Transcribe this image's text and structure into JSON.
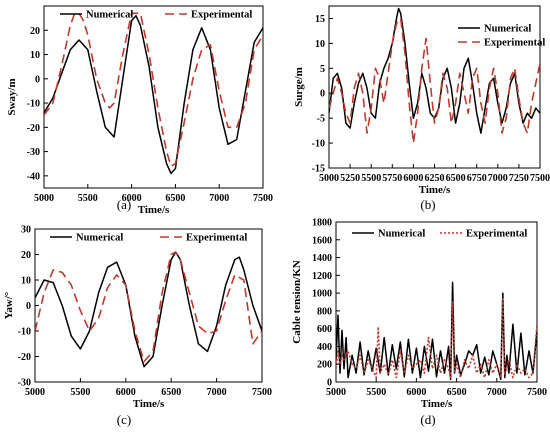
{
  "chart_data": [
    {
      "type": "line",
      "caption": "(a)",
      "xlabel": "Time/s",
      "ylabel": "Sway/m",
      "xlim": [
        5000,
        7500
      ],
      "ylim": [
        -45,
        30
      ],
      "xticks": [
        5000,
        5500,
        6000,
        6500,
        7000,
        7500
      ],
      "yticks": [
        -40,
        -30,
        -20,
        -10,
        0,
        10,
        20
      ],
      "legend": "top",
      "series": [
        {
          "name": "Numerical",
          "color": "#000000",
          "dash": "solid",
          "x": [
            5000,
            5100,
            5200,
            5300,
            5400,
            5500,
            5600,
            5700,
            5800,
            5900,
            6000,
            6050,
            6100,
            6200,
            6300,
            6400,
            6450,
            6500,
            6600,
            6700,
            6800,
            6900,
            7000,
            7100,
            7200,
            7300,
            7400,
            7500
          ],
          "y": [
            -14,
            -8,
            2,
            12,
            16,
            12,
            -5,
            -20,
            -24,
            0,
            24,
            26,
            22,
            5,
            -20,
            -35,
            -39,
            -37,
            -10,
            12,
            21,
            12,
            -12,
            -27,
            -25,
            -5,
            15,
            21
          ]
        },
        {
          "name": "Experimental",
          "color": "#c0392b",
          "dash": "dashed",
          "x": [
            5000,
            5100,
            5200,
            5300,
            5350,
            5400,
            5450,
            5500,
            5600,
            5700,
            5750,
            5800,
            5900,
            6000,
            6100,
            6200,
            6300,
            6400,
            6450,
            6500,
            6600,
            6700,
            6800,
            6900,
            7000,
            7100,
            7200,
            7300,
            7400,
            7500
          ],
          "y": [
            -15,
            -10,
            5,
            22,
            27,
            27,
            24,
            18,
            0,
            -10,
            -12,
            -10,
            10,
            27,
            27,
            10,
            -12,
            -30,
            -36,
            -35,
            -18,
            0,
            12,
            14,
            -5,
            -20,
            -20,
            -10,
            12,
            18
          ]
        }
      ]
    },
    {
      "type": "line",
      "caption": "(b)",
      "xlabel": "Time/s",
      "ylabel": "Surge/m",
      "xlim": [
        5000,
        7500
      ],
      "ylim": [
        -15,
        17.5
      ],
      "xticks": [
        5000,
        5250,
        5500,
        5750,
        6000,
        6250,
        6500,
        6750,
        7000,
        7250,
        7500
      ],
      "yticks": [
        -15,
        -10,
        -5,
        0,
        5,
        10,
        15
      ],
      "legend": "top-right",
      "series": [
        {
          "name": "Numerical",
          "color": "#000000",
          "dash": "solid",
          "x": [
            5000,
            5050,
            5100,
            5150,
            5200,
            5250,
            5300,
            5350,
            5400,
            5450,
            5500,
            5550,
            5600,
            5650,
            5700,
            5750,
            5800,
            5825,
            5850,
            5900,
            5950,
            6000,
            6050,
            6100,
            6150,
            6200,
            6250,
            6300,
            6350,
            6400,
            6450,
            6500,
            6550,
            6600,
            6650,
            6700,
            6750,
            6800,
            6850,
            6900,
            6950,
            7000,
            7050,
            7100,
            7150,
            7200,
            7250,
            7300,
            7350,
            7400,
            7450,
            7500
          ],
          "y": [
            -4,
            3,
            4,
            1,
            -6,
            -7,
            -2,
            2,
            4,
            1,
            -4,
            -5,
            2,
            5,
            7,
            10,
            15,
            17,
            16,
            10,
            2,
            -5,
            -2,
            4,
            1,
            -4,
            -5,
            -3,
            3,
            5,
            1,
            -6,
            -2,
            5,
            7,
            2,
            -4,
            -8,
            -3,
            2,
            3,
            -2,
            -6,
            -3,
            2,
            4,
            -2,
            -6,
            -4,
            -5,
            -3,
            -4
          ]
        },
        {
          "name": "Experimental",
          "color": "#c0392b",
          "dash": "dashed",
          "x": [
            5000,
            5050,
            5100,
            5150,
            5200,
            5250,
            5300,
            5350,
            5400,
            5450,
            5500,
            5550,
            5600,
            5650,
            5700,
            5750,
            5800,
            5850,
            5900,
            5950,
            6000,
            6050,
            6100,
            6150,
            6200,
            6250,
            6300,
            6350,
            6400,
            6450,
            6500,
            6550,
            6600,
            6650,
            6700,
            6750,
            6800,
            6850,
            6900,
            6950,
            7000,
            7050,
            7100,
            7150,
            7200,
            7250,
            7300,
            7350,
            7400,
            7450,
            7500
          ],
          "y": [
            -3,
            0,
            3,
            0,
            -4,
            -6,
            1,
            4,
            0,
            -8,
            -3,
            5,
            3,
            -2,
            4,
            10,
            14,
            15,
            8,
            -2,
            -10,
            -4,
            5,
            11,
            2,
            -6,
            -3,
            4,
            1,
            -6,
            -2,
            4,
            0,
            -4,
            3,
            5,
            -2,
            -6,
            1,
            5,
            0,
            -8,
            -5,
            3,
            5,
            -1,
            -6,
            -8,
            -2,
            2,
            6
          ]
        }
      ]
    },
    {
      "type": "line",
      "caption": "(c)",
      "xlabel": "Time/s",
      "ylabel": "Yaw/°",
      "xlim": [
        5000,
        7500
      ],
      "ylim": [
        -30,
        30
      ],
      "xticks": [
        5000,
        5500,
        6000,
        6500,
        7000,
        7500
      ],
      "yticks": [
        -30,
        -20,
        -10,
        0,
        10,
        20,
        30
      ],
      "legend": "top",
      "series": [
        {
          "name": "Numerical",
          "color": "#000000",
          "dash": "solid",
          "x": [
            5000,
            5100,
            5200,
            5300,
            5400,
            5500,
            5600,
            5700,
            5800,
            5900,
            6000,
            6100,
            6200,
            6300,
            6400,
            6500,
            6550,
            6600,
            6700,
            6800,
            6900,
            7000,
            7100,
            7200,
            7250,
            7300,
            7400,
            7500
          ],
          "y": [
            3,
            10,
            9,
            0,
            -12,
            -17,
            -10,
            5,
            15,
            17,
            8,
            -12,
            -24,
            -20,
            0,
            18,
            21,
            18,
            0,
            -15,
            -18,
            -8,
            8,
            18,
            19,
            14,
            0,
            -10
          ]
        },
        {
          "name": "Experimental",
          "color": "#c0392b",
          "dash": "dashed",
          "x": [
            5000,
            5100,
            5200,
            5300,
            5400,
            5500,
            5600,
            5700,
            5800,
            5900,
            6000,
            6100,
            6200,
            6300,
            6400,
            6500,
            6550,
            6600,
            6700,
            6800,
            6900,
            7000,
            7100,
            7200,
            7300,
            7400,
            7500
          ],
          "y": [
            -10,
            5,
            14,
            13,
            8,
            -2,
            -10,
            -5,
            7,
            12,
            8,
            -10,
            -22,
            -18,
            5,
            20,
            21,
            18,
            5,
            -8,
            -11,
            -10,
            2,
            12,
            10,
            -15,
            -10
          ]
        }
      ]
    },
    {
      "type": "line",
      "caption": "(d)",
      "xlabel": "Time/s",
      "ylabel": "Cable tension/KN",
      "xlim": [
        5000,
        7500
      ],
      "ylim": [
        0,
        1800
      ],
      "xticks": [
        5000,
        5500,
        6000,
        6500,
        7000,
        7500
      ],
      "yticks": [
        0,
        200,
        400,
        600,
        800,
        1000,
        1200,
        1400,
        1600,
        1800
      ],
      "legend": "top",
      "series": [
        {
          "name": "Numerical",
          "color": "#000000",
          "dash": "solid",
          "x": [
            5000,
            5025,
            5050,
            5075,
            5100,
            5125,
            5150,
            5200,
            5250,
            5300,
            5350,
            5400,
            5450,
            5500,
            5550,
            5600,
            5650,
            5700,
            5750,
            5800,
            5850,
            5900,
            5950,
            6000,
            6050,
            6100,
            6150,
            6200,
            6250,
            6300,
            6350,
            6400,
            6425,
            6450,
            6475,
            6500,
            6550,
            6600,
            6650,
            6700,
            6750,
            6800,
            6850,
            6900,
            6950,
            7000,
            7050,
            7075,
            7100,
            7125,
            7150,
            7200,
            7250,
            7300,
            7350,
            7400,
            7450,
            7500
          ],
          "y": [
            250,
            750,
            100,
            580,
            150,
            500,
            50,
            300,
            100,
            450,
            80,
            350,
            120,
            380,
            100,
            500,
            80,
            420,
            150,
            450,
            60,
            480,
            100,
            380,
            50,
            400,
            120,
            480,
            60,
            350,
            100,
            400,
            30,
            1120,
            100,
            300,
            80,
            200,
            350,
            300,
            420,
            100,
            280,
            80,
            350,
            200,
            30,
            1000,
            50,
            300,
            100,
            650,
            100,
            550,
            80,
            350,
            100,
            580
          ]
        },
        {
          "name": "Experimental",
          "color": "#c0392b",
          "dash": "dotted",
          "x": [
            5000,
            5025,
            5050,
            5075,
            5100,
            5150,
            5200,
            5250,
            5300,
            5350,
            5400,
            5450,
            5500,
            5525,
            5550,
            5600,
            5650,
            5700,
            5750,
            5800,
            5850,
            5900,
            5950,
            6000,
            6050,
            6100,
            6150,
            6200,
            6250,
            6300,
            6350,
            6400,
            6425,
            6450,
            6475,
            6500,
            6550,
            6600,
            6650,
            6700,
            6750,
            6800,
            6850,
            6900,
            6950,
            7000,
            7050,
            7075,
            7100,
            7150,
            7200,
            7250,
            7300,
            7350,
            7400,
            7450,
            7500
          ],
          "y": [
            150,
            350,
            200,
            300,
            250,
            350,
            200,
            150,
            300,
            100,
            250,
            150,
            50,
            620,
            100,
            200,
            80,
            250,
            50,
            350,
            100,
            300,
            150,
            200,
            250,
            100,
            500,
            150,
            300,
            100,
            250,
            150,
            50,
            900,
            100,
            200,
            50,
            250,
            150,
            300,
            100,
            200,
            50,
            250,
            100,
            200,
            50,
            950,
            80,
            250,
            50,
            200,
            100,
            150,
            50,
            100,
            650
          ]
        }
      ]
    }
  ]
}
